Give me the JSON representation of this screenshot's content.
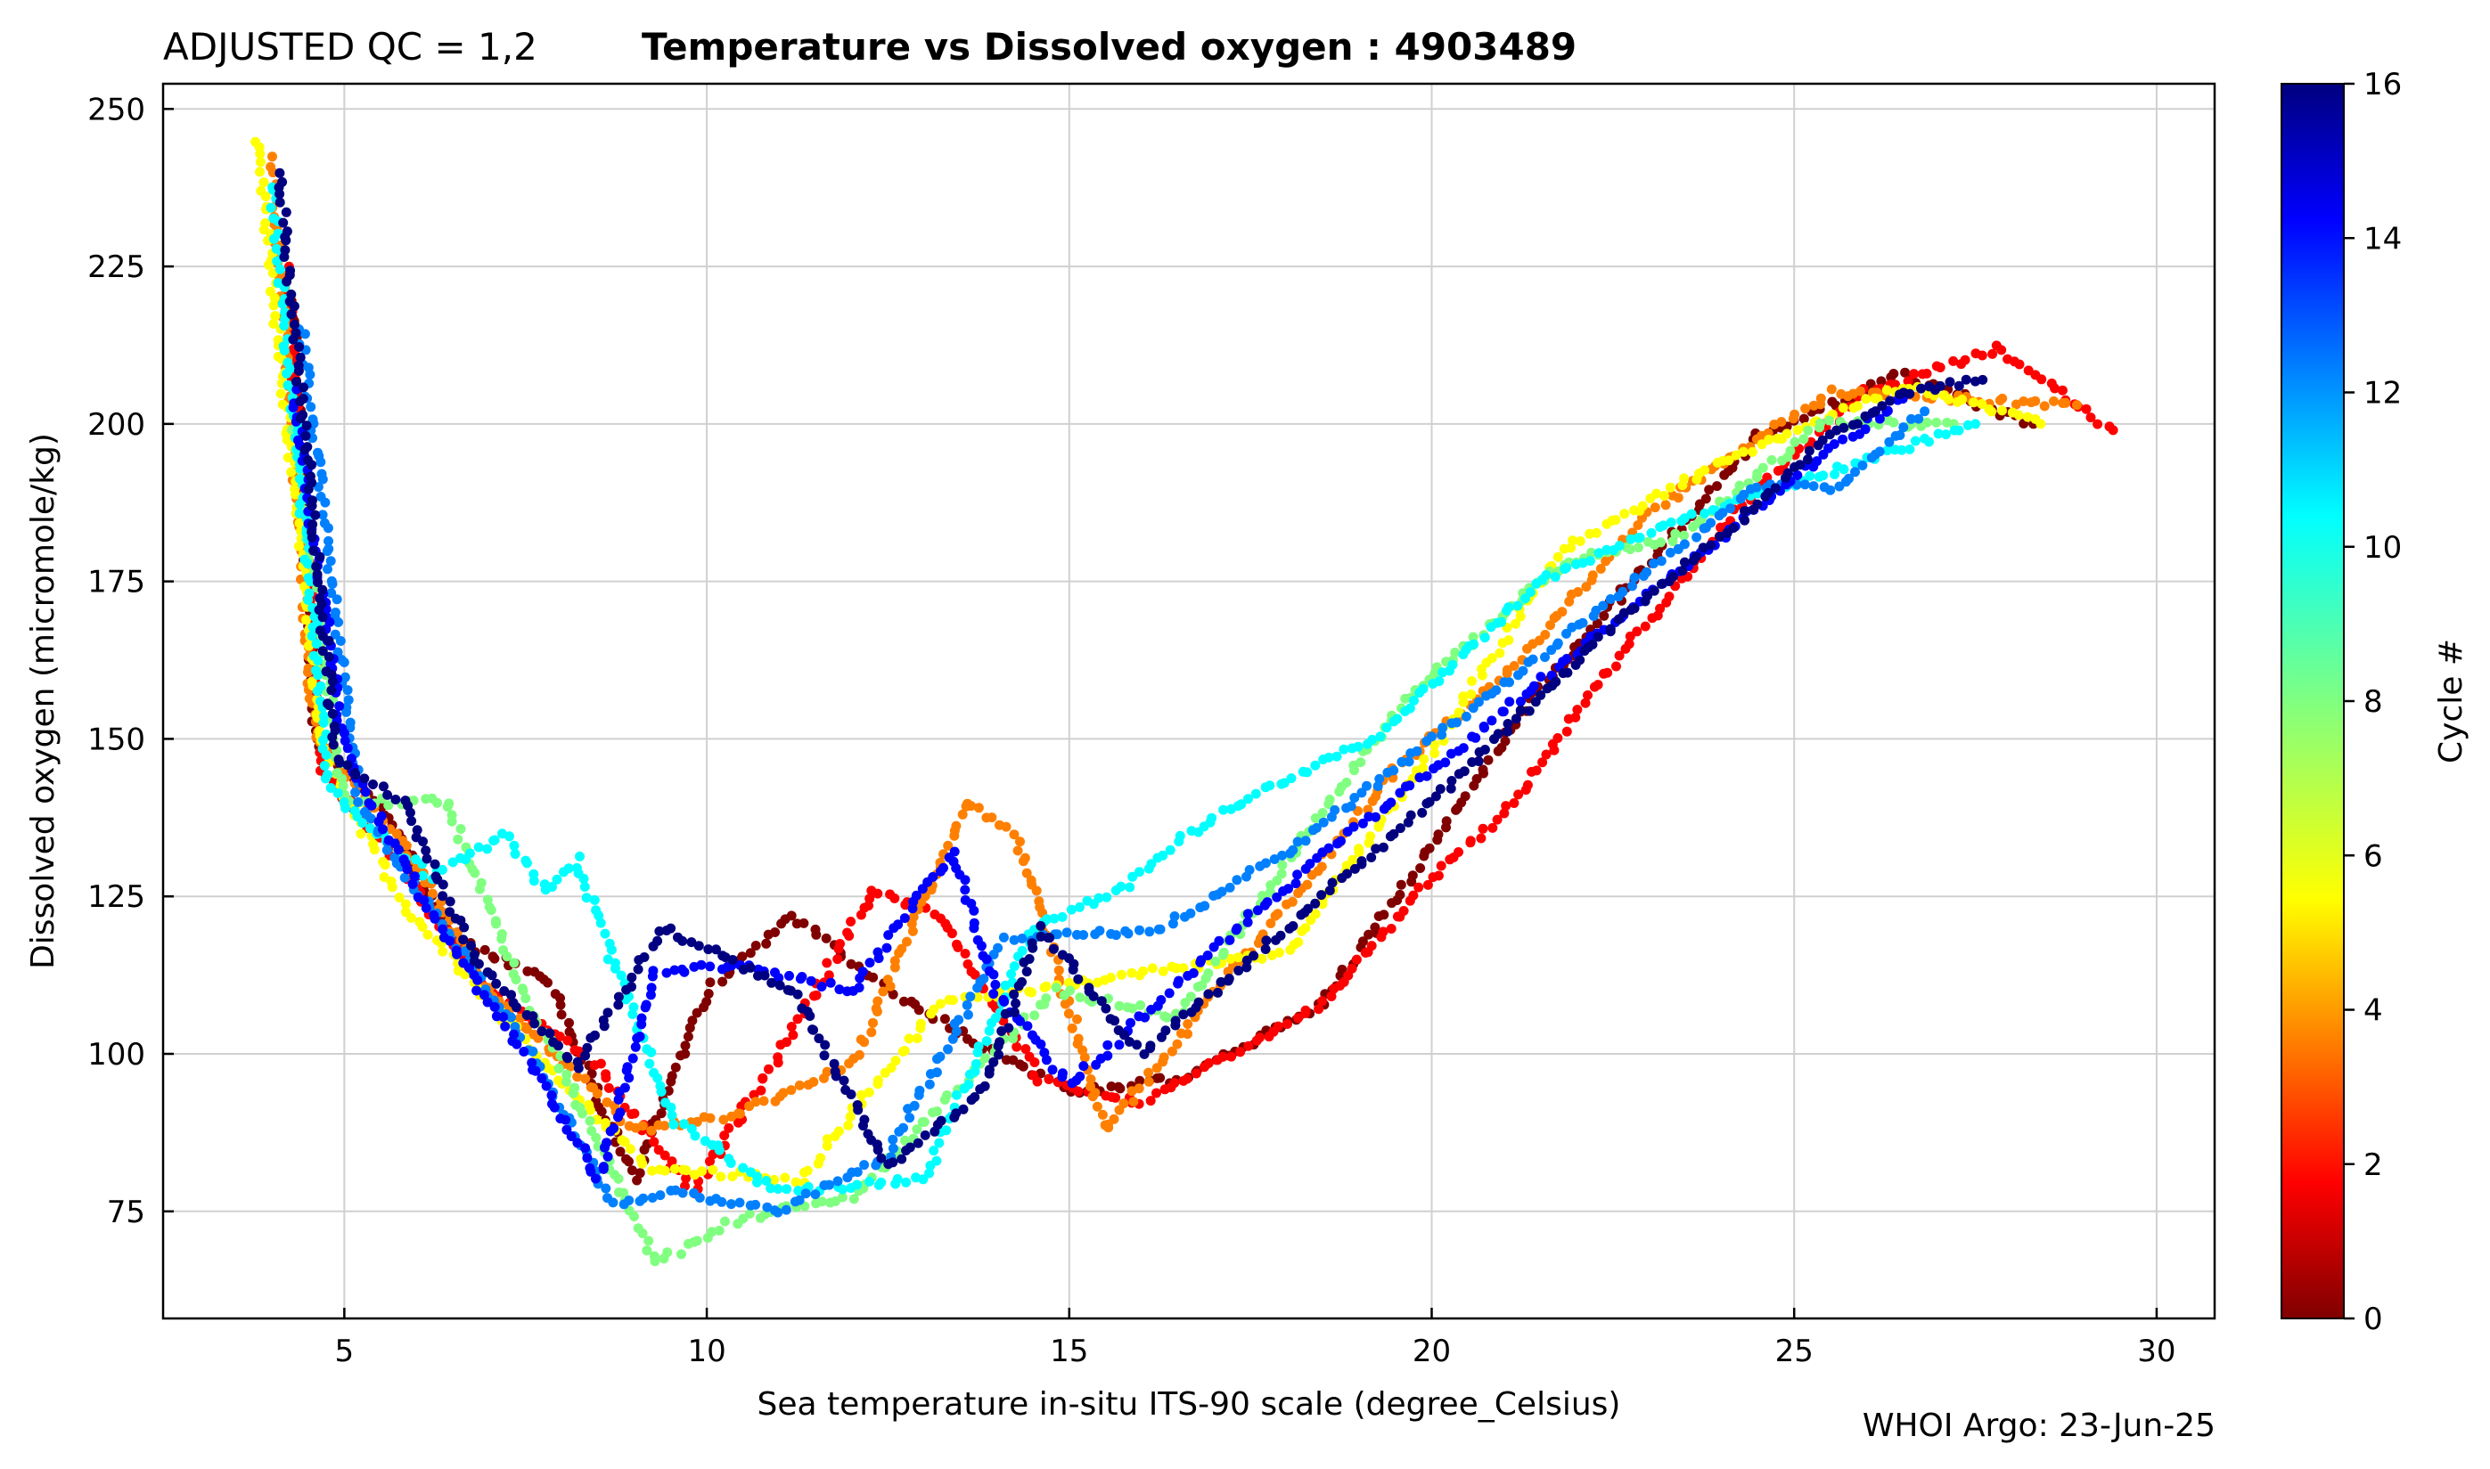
{
  "chart_data": {
    "type": "scatter",
    "title_prefix": "ADJUSTED QC = 1,2",
    "title": "Temperature vs Dissolved oxygen : 4903489",
    "xlabel": "Sea temperature in-situ ITS-90 scale  (degree_Celsius)",
    "ylabel": "Dissolved oxygen  (micromole/kg)",
    "footer": "WHOI Argo: 23-Jun-25",
    "xlim": [
      2.5,
      30.8
    ],
    "ylim": [
      58,
      254
    ],
    "xticks": [
      5,
      10,
      15,
      20,
      25,
      30
    ],
    "yticks": [
      75,
      100,
      125,
      150,
      175,
      200,
      225,
      250
    ],
    "grid": true,
    "colorbar": {
      "label": "Cycle #",
      "range": [
        0,
        16
      ],
      "ticks": [
        0,
        2,
        4,
        6,
        8,
        10,
        12,
        14,
        16
      ],
      "colormap": "jet_r"
    },
    "series": [
      {
        "cycle": 0,
        "points": [
          [
            4.3,
            220
          ],
          [
            4.6,
            150
          ],
          [
            5.6,
            138
          ],
          [
            6.5,
            118
          ],
          [
            7.8,
            112
          ],
          [
            9.0,
            80
          ],
          [
            10.0,
            110
          ],
          [
            11.2,
            122
          ],
          [
            12.5,
            110
          ],
          [
            14.0,
            100
          ],
          [
            15.0,
            94
          ],
          [
            16.5,
            96
          ],
          [
            18.5,
            108
          ],
          [
            21.5,
            158
          ],
          [
            23.0,
            178
          ],
          [
            24.5,
            198
          ],
          [
            26.5,
            208
          ],
          [
            28.3,
            200
          ]
        ]
      },
      {
        "cycle": 2,
        "points": [
          [
            4.2,
            225
          ],
          [
            4.7,
            145
          ],
          [
            5.8,
            130
          ],
          [
            6.8,
            112
          ],
          [
            8.5,
            98
          ],
          [
            9.8,
            78
          ],
          [
            11.0,
            100
          ],
          [
            12.3,
            126
          ],
          [
            13.2,
            122
          ],
          [
            14.6,
            96
          ],
          [
            16.0,
            92
          ],
          [
            18.5,
            108
          ],
          [
            20.0,
            128
          ],
          [
            21.0,
            138
          ],
          [
            22.5,
            162
          ],
          [
            24.5,
            190
          ],
          [
            26.0,
            205
          ],
          [
            27.8,
            212
          ],
          [
            29.4,
            199
          ]
        ]
      },
      {
        "cycle": 4,
        "points": [
          [
            4.0,
            242
          ],
          [
            4.6,
            150
          ],
          [
            5.9,
            132
          ],
          [
            7.0,
            110
          ],
          [
            9.0,
            88
          ],
          [
            10.3,
            90
          ],
          [
            12.0,
            98
          ],
          [
            13.6,
            140
          ],
          [
            14.3,
            134
          ],
          [
            15.5,
            88
          ],
          [
            19.5,
            145
          ],
          [
            21.0,
            160
          ],
          [
            23.0,
            186
          ],
          [
            25.5,
            205
          ],
          [
            28.9,
            203
          ]
        ]
      },
      {
        "cycle": 6,
        "points": [
          [
            3.8,
            245
          ],
          [
            4.7,
            148
          ],
          [
            5.8,
            124
          ],
          [
            7.8,
            98
          ],
          [
            9.2,
            82
          ],
          [
            11.3,
            80
          ],
          [
            13.2,
            108
          ],
          [
            15.5,
            112
          ],
          [
            18.0,
            116
          ],
          [
            20.0,
            148
          ],
          [
            21.8,
            180
          ],
          [
            24.0,
            194
          ],
          [
            26.5,
            206
          ],
          [
            28.4,
            200
          ]
        ]
      },
      {
        "cycle": 8,
        "points": [
          [
            4.3,
            200
          ],
          [
            5.0,
            140
          ],
          [
            6.4,
            140
          ],
          [
            7.4,
            112
          ],
          [
            9.3,
            67
          ],
          [
            10.5,
            74
          ],
          [
            12.0,
            77
          ],
          [
            13.5,
            95
          ],
          [
            14.8,
            110
          ],
          [
            16.5,
            106
          ],
          [
            19.6,
            156
          ],
          [
            21.8,
            178
          ],
          [
            23.4,
            182
          ],
          [
            25.4,
            200
          ],
          [
            27.2,
            200
          ]
        ]
      },
      {
        "cycle": 10,
        "points": [
          [
            4.0,
            238
          ],
          [
            4.8,
            142
          ],
          [
            6.2,
            128
          ],
          [
            7.2,
            135
          ],
          [
            7.8,
            126
          ],
          [
            8.2,
            131
          ],
          [
            8.8,
            112
          ],
          [
            9.5,
            90
          ],
          [
            11.0,
            78
          ],
          [
            13.0,
            80
          ],
          [
            14.5,
            120
          ],
          [
            15.8,
            127
          ],
          [
            17.0,
            138
          ],
          [
            19.2,
            150
          ],
          [
            21.5,
            175
          ],
          [
            23.0,
            183
          ],
          [
            27.5,
            200
          ]
        ]
      },
      {
        "cycle": 12,
        "points": [
          [
            4.4,
            215
          ],
          [
            5.2,
            140
          ],
          [
            6.5,
            118
          ],
          [
            7.6,
            100
          ],
          [
            8.7,
            76
          ],
          [
            9.5,
            78
          ],
          [
            11.0,
            75
          ],
          [
            12.5,
            84
          ],
          [
            14.1,
            118
          ],
          [
            16.3,
            120
          ],
          [
            18.0,
            132
          ],
          [
            24.5,
            190
          ],
          [
            25.6,
            190
          ],
          [
            26.8,
            202
          ]
        ]
      },
      {
        "cycle": 14,
        "points": [
          [
            4.3,
            205
          ],
          [
            5.0,
            148
          ],
          [
            6.2,
            122
          ],
          [
            7.6,
            98
          ],
          [
            8.5,
            80
          ],
          [
            9.3,
            113
          ],
          [
            10.5,
            114
          ],
          [
            12.0,
            110
          ],
          [
            13.4,
            132
          ],
          [
            14.0,
            110
          ],
          [
            15.0,
            95
          ],
          [
            17.5,
            122
          ],
          [
            25.5,
            196
          ],
          [
            26.5,
            204
          ]
        ]
      },
      {
        "cycle": 16,
        "points": [
          [
            4.1,
            240
          ],
          [
            4.9,
            146
          ],
          [
            5.8,
            140
          ],
          [
            6.8,
            115
          ],
          [
            8.2,
            98
          ],
          [
            9.4,
            120
          ],
          [
            11.2,
            110
          ],
          [
            12.5,
            82
          ],
          [
            13.8,
            94
          ],
          [
            14.6,
            120
          ],
          [
            16.0,
            100
          ],
          [
            20.0,
            140
          ],
          [
            22.5,
            168
          ],
          [
            24.2,
            184
          ],
          [
            25.5,
            198
          ],
          [
            26.5,
            205
          ],
          [
            27.6,
            207
          ]
        ]
      }
    ]
  }
}
